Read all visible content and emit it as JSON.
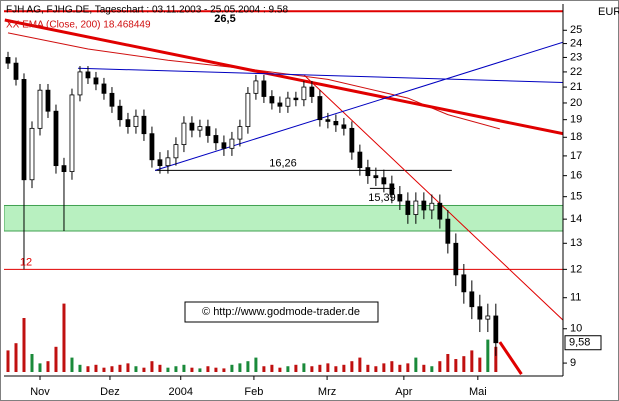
{
  "chart_data": {
    "type": "candlestick",
    "title": "FJH AG, FJHG.DE, Tageschart : 03.11.2003 - 25.05.2004 : 9.58",
    "indicator": "XX EMA (Close, 200) 18.468449",
    "currency": "EUR",
    "watermark": "© http://www.godmode-trader.de",
    "log_scale": true,
    "xlim": [
      -0.5,
      69.4
    ],
    "ylim": [
      8.65,
      27.1
    ],
    "yticks": [
      9,
      10,
      11,
      12,
      13,
      14,
      15,
      16,
      17,
      18,
      19,
      20,
      21,
      22,
      23,
      24,
      25
    ],
    "xticks": [
      {
        "value": 4,
        "label": "Nov"
      },
      {
        "value": 12.75,
        "label": "Dez"
      },
      {
        "value": 21.6,
        "label": "2004"
      },
      {
        "value": 30.75,
        "label": "Feb"
      },
      {
        "value": 39.9,
        "label": "Mrz"
      },
      {
        "value": 49.5,
        "label": "Apr"
      },
      {
        "value": 58.75,
        "label": "Mai"
      }
    ],
    "open": [
      23.0,
      22.6,
      21.5,
      15.8,
      18.5,
      20.8,
      19.5,
      16.5,
      16.2,
      20.5,
      22.0,
      21.6,
      21.2,
      20.6,
      19.8,
      19.0,
      18.6,
      19.2,
      18.2,
      16.8,
      16.5,
      16.9,
      17.6,
      18.8,
      18.4,
      18.6,
      18.1,
      17.7,
      17.4,
      17.9,
      18.6,
      20.6,
      21.4,
      20.4,
      20.0,
      19.8,
      20.3,
      20.2,
      21.0,
      20.4,
      19.0,
      18.9,
      18.7,
      18.5,
      17.2,
      16.4,
      16.0,
      15.9,
      15.6,
      15.1,
      14.8,
      14.2,
      14.8,
      14.4,
      14.7,
      14.0,
      13.0,
      11.8,
      11.2,
      10.7,
      10.3,
      10.4
    ],
    "high": [
      23.4,
      23.0,
      21.9,
      18.9,
      21.2,
      21.2,
      19.9,
      16.9,
      20.9,
      22.4,
      22.4,
      22.0,
      21.6,
      21.0,
      20.2,
      19.4,
      19.6,
      19.6,
      18.6,
      17.2,
      17.3,
      18.0,
      19.2,
      19.2,
      19.0,
      19.0,
      18.5,
      18.1,
      18.3,
      19.0,
      21.0,
      21.8,
      21.8,
      20.8,
      20.4,
      20.7,
      20.7,
      21.4,
      21.4,
      20.8,
      19.4,
      19.3,
      19.1,
      18.9,
      17.6,
      16.8,
      16.4,
      16.3,
      16.0,
      15.5,
      15.2,
      15.2,
      15.2,
      15.1,
      15.1,
      14.4,
      13.4,
      12.2,
      11.6,
      11.1,
      10.8,
      10.8
    ],
    "low": [
      22.2,
      21.1,
      12.0,
      15.4,
      18.1,
      19.1,
      16.1,
      13.5,
      15.8,
      20.1,
      21.2,
      20.8,
      20.2,
      19.4,
      18.6,
      18.2,
      18.2,
      17.8,
      16.4,
      16.1,
      16.1,
      16.5,
      17.2,
      18.0,
      18.0,
      17.7,
      17.3,
      17.0,
      17.0,
      17.5,
      18.2,
      20.2,
      20.0,
      19.6,
      19.4,
      19.4,
      19.8,
      19.8,
      20.0,
      18.6,
      18.5,
      18.3,
      18.1,
      16.8,
      16.0,
      15.6,
      15.5,
      15.2,
      14.7,
      14.4,
      13.8,
      13.8,
      14.0,
      14.0,
      13.6,
      12.6,
      11.4,
      10.8,
      10.3,
      9.9,
      9.9,
      9.2
    ],
    "close": [
      22.6,
      21.5,
      15.8,
      18.5,
      20.8,
      19.5,
      16.5,
      16.2,
      20.5,
      22.0,
      21.6,
      21.2,
      20.6,
      19.8,
      19.0,
      18.6,
      19.2,
      18.2,
      16.8,
      16.5,
      16.9,
      17.6,
      18.8,
      18.4,
      18.6,
      18.1,
      17.7,
      17.4,
      17.9,
      18.6,
      20.6,
      21.4,
      20.4,
      20.0,
      19.8,
      20.3,
      20.2,
      21.0,
      20.4,
      19.0,
      18.9,
      18.7,
      18.5,
      17.2,
      16.4,
      16.0,
      15.9,
      15.6,
      15.1,
      14.8,
      14.2,
      14.8,
      14.4,
      14.7,
      14.0,
      13.0,
      11.8,
      11.2,
      10.7,
      10.3,
      10.4,
      9.58
    ],
    "close_label": "9,58",
    "volume": [
      30,
      40,
      75,
      25,
      12,
      15,
      35,
      95,
      20,
      10,
      8,
      10,
      6,
      8,
      10,
      12,
      8,
      6,
      15,
      10,
      6,
      8,
      10,
      6,
      5,
      8,
      6,
      5,
      10,
      12,
      15,
      20,
      8,
      10,
      6,
      8,
      10,
      12,
      8,
      10,
      12,
      8,
      10,
      15,
      20,
      10,
      8,
      12,
      15,
      10,
      12,
      20,
      10,
      8,
      15,
      25,
      18,
      22,
      30,
      20,
      45,
      35
    ],
    "volume_lim": [
      0,
      100
    ],
    "volume_colors": {
      "up": "#1a8a3a",
      "down": "#c01010"
    },
    "ema": {
      "color": "#d01010",
      "x": [
        0,
        10,
        20,
        30,
        40,
        50,
        55,
        61.5
      ],
      "values": [
        24.8,
        23.6,
        22.8,
        22.2,
        21.5,
        20.3,
        19.3,
        18.47
      ]
    },
    "zone": {
      "color": "#b8f0c0",
      "from": 13.5,
      "to": 14.6
    },
    "lines": [
      {
        "color": "#e00000",
        "width": 2,
        "x": [
          -0.5,
          69.4
        ],
        "y": [
          26.5,
          26.5
        ],
        "label": "26,5"
      },
      {
        "color": "#e00000",
        "width": 1,
        "x": [
          -0.5,
          69.4
        ],
        "y": [
          12,
          12
        ],
        "label": "12"
      },
      {
        "color": "#000000",
        "width": 1,
        "x": [
          18.4,
          55.5
        ],
        "y": [
          16.26,
          16.26
        ],
        "label": "16,26"
      },
      {
        "color": "#000000",
        "width": 1,
        "x": [
          45.25,
          48.4
        ],
        "y": [
          15.39,
          15.39
        ],
        "label": "15,39"
      },
      {
        "color": "#e00000",
        "width": 3,
        "x": [
          -0.4,
          69.4
        ],
        "y": [
          25.8,
          18.2
        ]
      },
      {
        "color": "#e00000",
        "width": 1,
        "x": [
          37,
          69.4
        ],
        "y": [
          21.8,
          10.27
        ]
      },
      {
        "color": "#e00000",
        "width": 3,
        "x": [
          61.5,
          64.2
        ],
        "y": [
          9.6,
          8.7
        ]
      },
      {
        "color": "#0000c0",
        "width": 1,
        "x": [
          8.75,
          69.4
        ],
        "y": [
          22.25,
          21.3
        ]
      },
      {
        "color": "#0000c0",
        "width": 1,
        "x": [
          18.4,
          69.4
        ],
        "y": [
          16.26,
          24.1
        ]
      }
    ]
  }
}
